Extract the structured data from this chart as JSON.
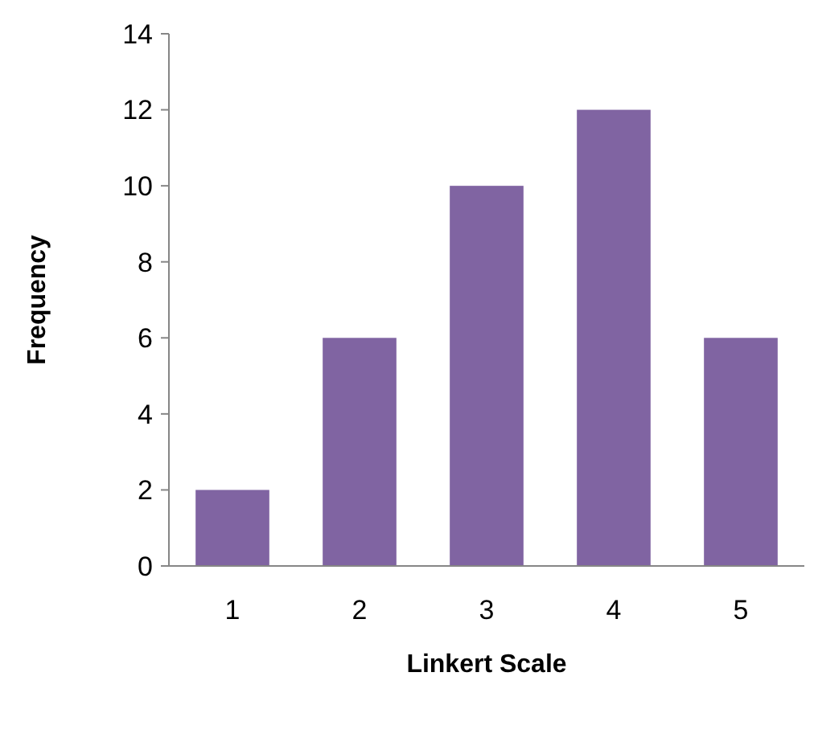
{
  "chart_data": {
    "type": "bar",
    "xlabel": "Linkert Scale",
    "ylabel": "Frequency",
    "categories": [
      "1",
      "2",
      "3",
      "4",
      "5"
    ],
    "values": [
      2,
      6,
      10,
      12,
      6
    ],
    "color": "#8064a2",
    "ylim": [
      0,
      14
    ],
    "yticks": [
      0,
      2,
      4,
      6,
      8,
      10,
      12,
      14
    ],
    "grid": false
  }
}
